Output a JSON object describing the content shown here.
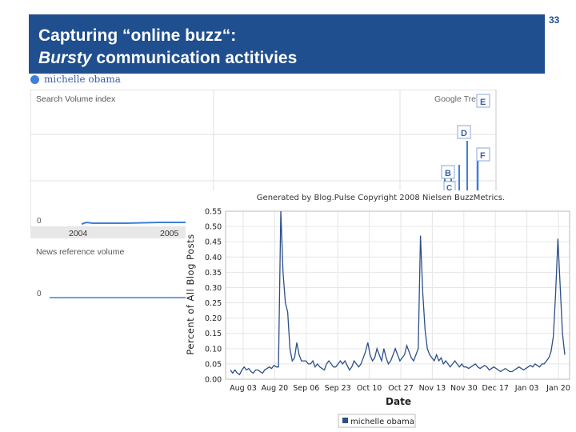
{
  "slide": {
    "title_line1": "Capturing “online buzz“:",
    "title_line2_italic": "Bursty",
    "title_line2_rest": " communication actitivies",
    "page_number": "33"
  },
  "colors": {
    "title_bar": "#1f4f8f",
    "google_series": "#3f7fd8",
    "blogpulse_series": "#2c4f8a"
  },
  "chart_data": [
    {
      "type": "line",
      "source": "Google Trends",
      "legend_entry": "michelle obama",
      "panels": [
        {
          "label": "Search Volume index",
          "ytick": "0"
        },
        {
          "label": "News reference volume",
          "ytick": "0"
        }
      ],
      "brand": "Google Tre",
      "xticks": [
        "2004",
        "2005"
      ],
      "markers": [
        "E",
        "D",
        "F",
        "B",
        "C"
      ]
    },
    {
      "type": "line",
      "source": "BlogPulse",
      "title": "Generated by Blog.Pulse Copyright 2008 Nielsen BuzzMetrics.",
      "xlabel": "Date",
      "ylabel": "Percent of All Blog Posts",
      "ylim": [
        0,
        0.55
      ],
      "yticks": [
        "0.00",
        "0.05",
        "0.10",
        "0.15",
        "0.20",
        "0.25",
        "0.30",
        "0.35",
        "0.40",
        "0.45",
        "0.50",
        "0.55"
      ],
      "xticks": [
        "Aug 03",
        "Aug 20",
        "Sep 06",
        "Sep 23",
        "Oct 10",
        "Oct 27",
        "Nov 13",
        "Nov 30",
        "Dec 17",
        "Jan 03",
        "Jan 20"
      ],
      "legend": "michelle obama",
      "grid": true,
      "series": [
        {
          "name": "michelle obama",
          "values": [
            0.03,
            0.02,
            0.03,
            0.02,
            0.015,
            0.03,
            0.04,
            0.03,
            0.035,
            0.025,
            0.02,
            0.03,
            0.03,
            0.025,
            0.02,
            0.03,
            0.035,
            0.04,
            0.035,
            0.045,
            0.04,
            0.04,
            0.55,
            0.35,
            0.25,
            0.22,
            0.1,
            0.06,
            0.07,
            0.12,
            0.08,
            0.06,
            0.06,
            0.06,
            0.05,
            0.05,
            0.06,
            0.04,
            0.05,
            0.04,
            0.035,
            0.03,
            0.05,
            0.06,
            0.05,
            0.04,
            0.04,
            0.05,
            0.06,
            0.05,
            0.06,
            0.045,
            0.03,
            0.04,
            0.06,
            0.05,
            0.04,
            0.05,
            0.07,
            0.09,
            0.12,
            0.08,
            0.06,
            0.07,
            0.1,
            0.08,
            0.06,
            0.1,
            0.07,
            0.05,
            0.06,
            0.08,
            0.1,
            0.08,
            0.06,
            0.07,
            0.08,
            0.11,
            0.09,
            0.07,
            0.06,
            0.08,
            0.1,
            0.47,
            0.28,
            0.16,
            0.1,
            0.08,
            0.07,
            0.06,
            0.08,
            0.06,
            0.07,
            0.05,
            0.06,
            0.05,
            0.04,
            0.05,
            0.06,
            0.05,
            0.04,
            0.05,
            0.04,
            0.04,
            0.035,
            0.04,
            0.045,
            0.05,
            0.04,
            0.035,
            0.04,
            0.045,
            0.04,
            0.03,
            0.035,
            0.04,
            0.035,
            0.03,
            0.025,
            0.03,
            0.035,
            0.03,
            0.025,
            0.025,
            0.03,
            0.035,
            0.04,
            0.035,
            0.03,
            0.035,
            0.04,
            0.045,
            0.04,
            0.05,
            0.045,
            0.04,
            0.05,
            0.05,
            0.06,
            0.07,
            0.09,
            0.14,
            0.28,
            0.46,
            0.3,
            0.15,
            0.08
          ]
        }
      ]
    }
  ]
}
